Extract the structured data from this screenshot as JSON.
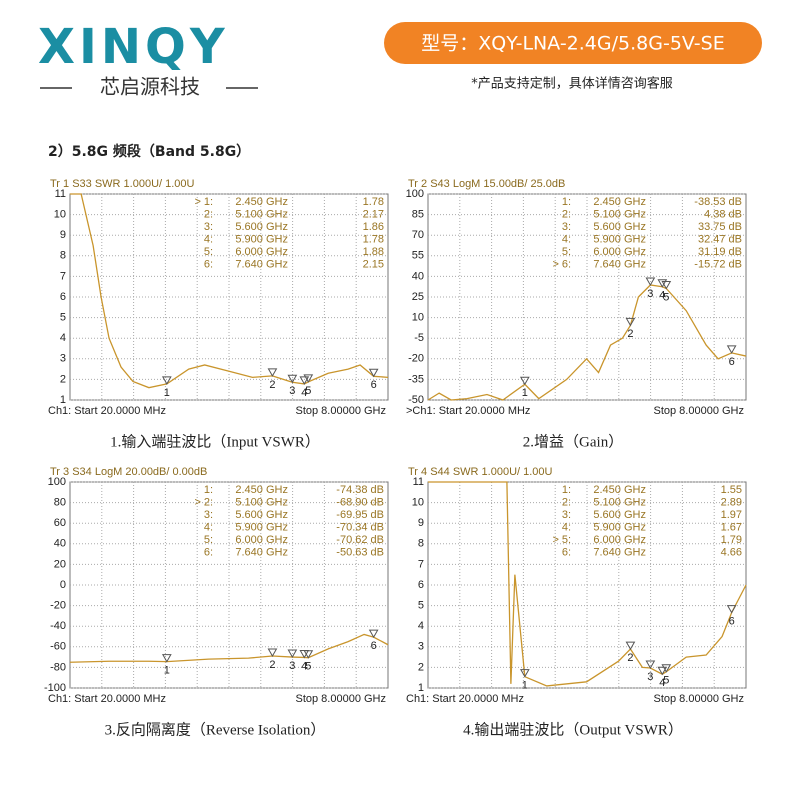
{
  "header": {
    "logo": "XINQY",
    "company": "芯启源科技",
    "model": "型号：XQY-LNA-2.4G/5.8G-5V-SE",
    "note": "*产品支持定制，具体详情咨询客服"
  },
  "section": "2）5.8G 频段（Band 5.8G）",
  "chart_data": [
    {
      "type": "line",
      "title": "1.输入端驻波比（Input VSWR）",
      "trace_label": "Tr 1  S33 SWR 1.000U/ 1.00U",
      "start_label": "Ch1: Start  20.0000 MHz",
      "stop_label": "Stop 8.00000 GHz",
      "color": "#c9952c",
      "xlim": [
        0.02,
        8
      ],
      "ylim": [
        1,
        11
      ],
      "yticks": [
        1,
        2,
        3,
        4,
        5,
        6,
        7,
        8,
        9,
        10,
        11
      ],
      "x": [
        0.02,
        0.3,
        0.6,
        0.8,
        1.0,
        1.3,
        1.6,
        2.0,
        2.45,
        3.0,
        3.4,
        4.0,
        4.6,
        5.1,
        5.6,
        5.9,
        6.0,
        6.5,
        7.0,
        7.3,
        7.64,
        8
      ],
      "values": [
        11,
        11,
        8.5,
        6,
        4,
        2.6,
        1.9,
        1.6,
        1.78,
        2.5,
        2.7,
        2.4,
        2.1,
        2.17,
        1.86,
        1.78,
        1.88,
        2.3,
        2.5,
        2.7,
        2.15,
        2.1
      ],
      "markers": [
        {
          "label": "> 1:",
          "n": "1",
          "freq": 2.45,
          "freq_label": "2.450  GHz",
          "value": 1.78
        },
        {
          "label": "2:",
          "n": "2",
          "freq": 5.1,
          "freq_label": "5.100  GHz",
          "value": 2.17
        },
        {
          "label": "3:",
          "n": "3",
          "freq": 5.6,
          "freq_label": "5.600  GHz",
          "value": 1.86
        },
        {
          "label": "4:",
          "n": "4",
          "freq": 5.9,
          "freq_label": "5.900  GHz",
          "value": 1.78
        },
        {
          "label": "5:",
          "n": "5",
          "freq": 6.0,
          "freq_label": "6.000  GHz",
          "value": 1.88
        },
        {
          "label": "6:",
          "n": "6",
          "freq": 7.64,
          "freq_label": "7.640  GHz",
          "value": 2.15
        }
      ]
    },
    {
      "type": "line",
      "title": "2.增益（Gain）",
      "trace_label": "Tr 2  S43 LogM 15.00dB/ 25.0dB",
      "start_label": ">Ch1: Start  20.0000 MHz",
      "stop_label": "Stop 8.00000 GHz",
      "color": "#c9952c",
      "xlim": [
        0.02,
        8
      ],
      "ylim": [
        -50,
        100
      ],
      "yticks": [
        -50,
        -35,
        -20,
        -5,
        10,
        25,
        40,
        55,
        70,
        85,
        100
      ],
      "x": [
        0.02,
        0.3,
        0.6,
        1.0,
        1.5,
        1.9,
        2.45,
        2.8,
        3.5,
        4.0,
        4.3,
        4.6,
        4.9,
        5.1,
        5.3,
        5.6,
        5.9,
        6.0,
        6.5,
        7.0,
        7.3,
        7.64,
        8
      ],
      "values": [
        -50,
        -45,
        -50,
        -49,
        -46,
        -50,
        -38.53,
        -49,
        -35,
        -20,
        -30,
        -10,
        -5,
        4.38,
        25,
        33.75,
        32.47,
        31.19,
        15,
        -10,
        -20,
        -15.72,
        -18
      ],
      "markers": [
        {
          "label": "1:",
          "n": "1",
          "freq": 2.45,
          "freq_label": "2.450  GHz",
          "value": -38.53,
          "value_label": "-38.53 dB"
        },
        {
          "label": "2:",
          "n": "2",
          "freq": 5.1,
          "freq_label": "5.100  GHz",
          "value": 4.38,
          "value_label": "4.38 dB"
        },
        {
          "label": "3:",
          "n": "3",
          "freq": 5.6,
          "freq_label": "5.600  GHz",
          "value": 33.75,
          "value_label": "33.75 dB"
        },
        {
          "label": "4:",
          "n": "4",
          "freq": 5.9,
          "freq_label": "5.900  GHz",
          "value": 32.47,
          "value_label": "32.47 dB"
        },
        {
          "label": "5:",
          "n": "5",
          "freq": 6.0,
          "freq_label": "6.000  GHz",
          "value": 31.19,
          "value_label": "31.19 dB"
        },
        {
          "label": "> 6:",
          "n": "6",
          "freq": 7.64,
          "freq_label": "7.640  GHz",
          "value": -15.72,
          "value_label": "-15.72 dB"
        }
      ]
    },
    {
      "type": "line",
      "title": "3.反向隔离度（Reverse Isolation）",
      "trace_label": "Tr 3  S34 LogM 20.00dB/  0.00dB",
      "start_label": "Ch1: Start  20.0000 MHz",
      "stop_label": "Stop 8.00000 GHz",
      "color": "#c9952c",
      "xlim": [
        0.02,
        8
      ],
      "ylim": [
        -100,
        100
      ],
      "yticks": [
        -100,
        -80,
        -60,
        -40,
        -20,
        0,
        20,
        40,
        60,
        80,
        100
      ],
      "x": [
        0.02,
        1,
        2,
        2.45,
        3.5,
        4.5,
        5.1,
        5.6,
        5.9,
        6.0,
        6.5,
        7.0,
        7.4,
        7.64,
        8
      ],
      "values": [
        -75,
        -74,
        -74,
        -74.38,
        -72,
        -71,
        -68.9,
        -69.95,
        -70.34,
        -70.62,
        -62,
        -55,
        -48,
        -50.63,
        -58
      ],
      "markers": [
        {
          "label": "1:",
          "n": "1",
          "freq": 2.45,
          "freq_label": "2.450  GHz",
          "value": -74.38,
          "value_label": "-74.38 dB"
        },
        {
          "label": "> 2:",
          "n": "2",
          "freq": 5.1,
          "freq_label": "5.100  GHz",
          "value": -68.9,
          "value_label": "-68.90 dB"
        },
        {
          "label": "3:",
          "n": "3",
          "freq": 5.6,
          "freq_label": "5.600  GHz",
          "value": -69.95,
          "value_label": "-69.95 dB"
        },
        {
          "label": "4:",
          "n": "4",
          "freq": 5.9,
          "freq_label": "5.900  GHz",
          "value": -70.34,
          "value_label": "-70.34 dB"
        },
        {
          "label": "5:",
          "n": "5",
          "freq": 6.0,
          "freq_label": "6.000  GHz",
          "value": -70.62,
          "value_label": "-70.62 dB"
        },
        {
          "label": "6:",
          "n": "6",
          "freq": 7.64,
          "freq_label": "7.640  GHz",
          "value": -50.63,
          "value_label": "-50.63 dB"
        }
      ]
    },
    {
      "type": "line",
      "title": "4.输出端驻波比（Output VSWR）",
      "trace_label": "Tr 4  S44 SWR 1.000U/  1.00U",
      "start_label": "Ch1: Start  20.0000 MHz",
      "stop_label": "Stop 8.00000 GHz",
      "color": "#c9952c",
      "xlim": [
        0.02,
        8
      ],
      "ylim": [
        1,
        11
      ],
      "yticks": [
        1,
        2,
        3,
        4,
        5,
        6,
        7,
        8,
        9,
        10,
        11
      ],
      "x": [
        0.02,
        2.0,
        2.1,
        2.2,
        2.45,
        3.0,
        4.0,
        4.8,
        5.1,
        5.4,
        5.6,
        5.9,
        6.0,
        6.5,
        7.0,
        7.4,
        7.64,
        8
      ],
      "values": [
        11,
        11,
        1.2,
        6.5,
        1.55,
        1.1,
        1.3,
        2.3,
        2.89,
        2,
        1.97,
        1.67,
        1.79,
        2.5,
        2.6,
        3.5,
        4.66,
        6
      ],
      "markers": [
        {
          "label": "1:",
          "n": "1",
          "freq": 2.45,
          "freq_label": "2.450  GHz",
          "value": 1.55
        },
        {
          "label": "2:",
          "n": "2",
          "freq": 5.1,
          "freq_label": "5.100  GHz",
          "value": 2.89
        },
        {
          "label": "3:",
          "n": "3",
          "freq": 5.6,
          "freq_label": "5.600  GHz",
          "value": 1.97
        },
        {
          "label": "4:",
          "n": "4",
          "freq": 5.9,
          "freq_label": "5.900  GHz",
          "value": 1.67
        },
        {
          "label": "> 5:",
          "n": "5",
          "freq": 6.0,
          "freq_label": "6.000  GHz",
          "value": 1.79
        },
        {
          "label": "6:",
          "n": "6",
          "freq": 7.64,
          "freq_label": "7.640  GHz",
          "value": 4.66
        }
      ]
    }
  ]
}
